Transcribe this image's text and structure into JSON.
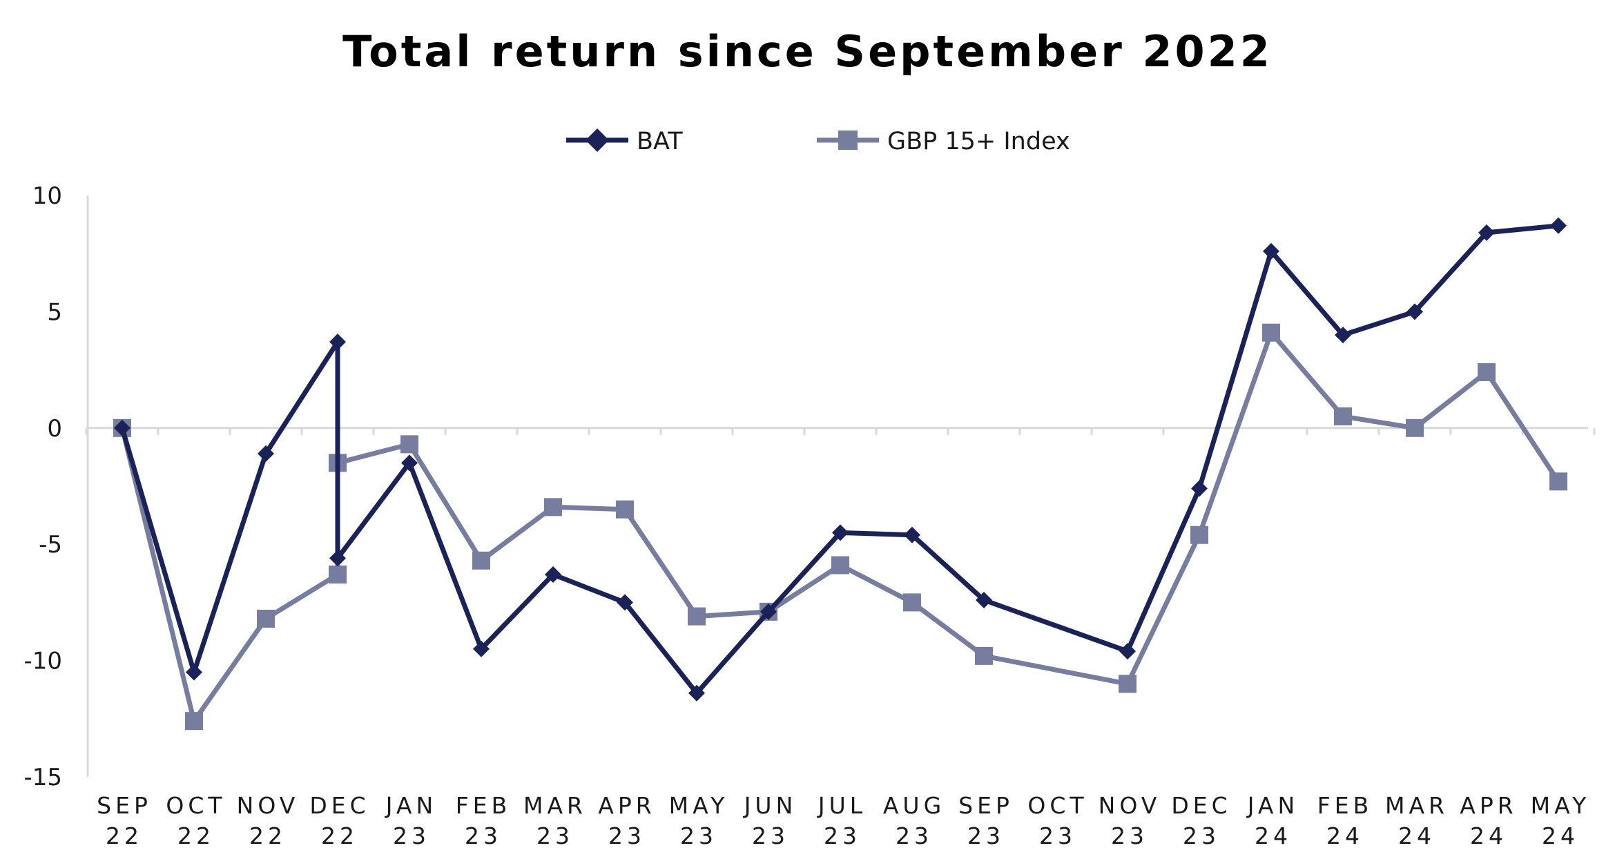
{
  "chart_data": {
    "type": "line",
    "title": "Total return since September 2022",
    "xlabel": "",
    "ylabel": "",
    "ylim": [
      -15,
      10
    ],
    "yticks": [
      10,
      5,
      0,
      -5,
      -10,
      -15
    ],
    "categories": [
      [
        "SEP",
        "22"
      ],
      [
        "OCT",
        "22"
      ],
      [
        "NOV",
        "22"
      ],
      [
        "DEC",
        "22"
      ],
      [
        "JAN",
        "23"
      ],
      [
        "FEB",
        "23"
      ],
      [
        "MAR",
        "23"
      ],
      [
        "APR",
        "23"
      ],
      [
        "MAY",
        "23"
      ],
      [
        "JUN",
        "23"
      ],
      [
        "JUL",
        "23"
      ],
      [
        "AUG",
        "23"
      ],
      [
        "SEP",
        "23"
      ],
      [
        "OCT",
        "23"
      ],
      [
        "NOV",
        "23"
      ],
      [
        "DEC",
        "23"
      ],
      [
        "JAN",
        "24"
      ],
      [
        "FEB",
        "24"
      ],
      [
        "MAR",
        "24"
      ],
      [
        "APR",
        "24"
      ],
      [
        "MAY",
        "24"
      ]
    ],
    "grid": false,
    "legend": "top",
    "series": [
      {
        "name": "BAT",
        "color": "#1b2257",
        "marker": "diamond",
        "points": [
          {
            "x": 0,
            "y": 0
          },
          {
            "x": 1,
            "y": -10.5
          },
          {
            "x": 2,
            "y": -1.1
          },
          {
            "x": 3,
            "y": 3.7
          },
          {
            "x": 3,
            "y": -5.6
          },
          {
            "x": 4,
            "y": -1.5
          },
          {
            "x": 5,
            "y": -9.5
          },
          {
            "x": 6,
            "y": -6.3
          },
          {
            "x": 7,
            "y": -7.5
          },
          {
            "x": 8,
            "y": -11.4
          },
          {
            "x": 9,
            "y": -7.9
          },
          {
            "x": 10,
            "y": -4.5
          },
          {
            "x": 11,
            "y": -4.6
          },
          {
            "x": 12,
            "y": -7.4
          },
          {
            "x": 14,
            "y": -9.6
          },
          {
            "x": 15,
            "y": -2.6
          },
          {
            "x": 16,
            "y": 7.6
          },
          {
            "x": 17,
            "y": 4.0
          },
          {
            "x": 18,
            "y": 5.0
          },
          {
            "x": 19,
            "y": 8.4
          },
          {
            "x": 20,
            "y": 8.7
          }
        ]
      },
      {
        "name": "GBP 15+ Index",
        "color": "#777d9e",
        "marker": "square",
        "points": [
          {
            "x": 0,
            "y": 0
          },
          {
            "x": 1,
            "y": -12.6
          },
          {
            "x": 2,
            "y": -8.2
          },
          {
            "x": 3,
            "y": -6.3
          },
          {
            "x": 3,
            "y": -1.5
          },
          {
            "x": 4,
            "y": -0.7
          },
          {
            "x": 5,
            "y": -5.7
          },
          {
            "x": 6,
            "y": -3.4
          },
          {
            "x": 7,
            "y": -3.5
          },
          {
            "x": 8,
            "y": -8.1
          },
          {
            "x": 9,
            "y": -7.9
          },
          {
            "x": 10,
            "y": -5.9
          },
          {
            "x": 11,
            "y": -7.5
          },
          {
            "x": 12,
            "y": -9.8
          },
          {
            "x": 14,
            "y": -11.0
          },
          {
            "x": 15,
            "y": -4.6
          },
          {
            "x": 16,
            "y": 4.1
          },
          {
            "x": 17,
            "y": 0.5
          },
          {
            "x": 18,
            "y": 0.0
          },
          {
            "x": 19,
            "y": 2.4
          },
          {
            "x": 20,
            "y": -2.3
          }
        ]
      }
    ]
  }
}
